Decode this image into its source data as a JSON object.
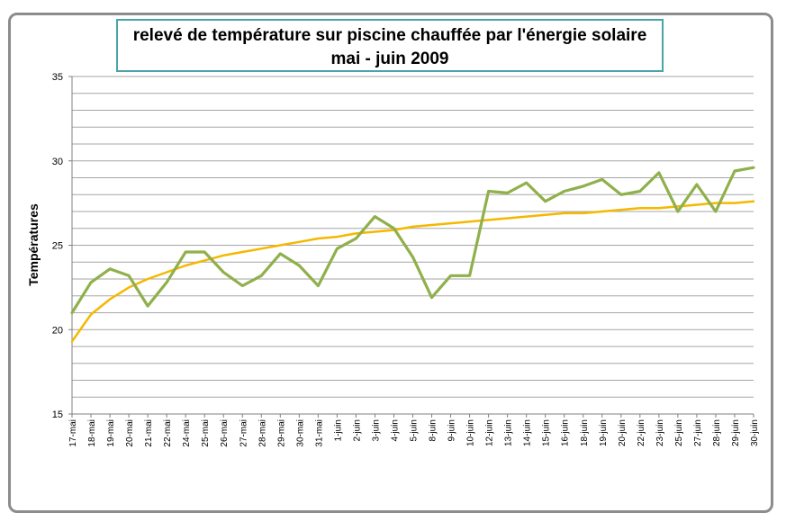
{
  "chart_data": {
    "type": "line",
    "title": "relevé de température sur piscine chauffée par l'énergie solaire",
    "subtitle": "mai - juin 2009",
    "ylabel": "Températures",
    "xlabel": "",
    "ylim": [
      15,
      35
    ],
    "yticks": [
      15,
      20,
      25,
      30,
      35
    ],
    "grid": true,
    "legend": "none",
    "categories": [
      "17-mai",
      "18-mai",
      "19-mai",
      "20-mai",
      "21-mai",
      "22-mai",
      "24-mai",
      "25-mai",
      "26-mai",
      "27-mai",
      "28-mai",
      "29-mai",
      "30-mai",
      "31-mai",
      "1-juin",
      "2-juin",
      "3-juin",
      "4-juin",
      "5-juin",
      "8-juin",
      "9-juin",
      "10-juin",
      "12-juin",
      "13-juin",
      "14-juin",
      "15-juin",
      "16-juin",
      "18-juin",
      "19-juin",
      "20-juin",
      "22-juin",
      "23-juin",
      "25-juin",
      "27-juin",
      "28-juin",
      "29-juin",
      "30-juin"
    ],
    "series": [
      {
        "color": "#8fb04a",
        "values": [
          21.0,
          22.8,
          23.6,
          23.2,
          21.4,
          22.8,
          24.6,
          24.6,
          23.4,
          22.6,
          23.2,
          24.5,
          23.8,
          22.6,
          24.8,
          25.4,
          26.7,
          26.0,
          24.3,
          21.9,
          23.2,
          23.2,
          28.2,
          28.1,
          28.7,
          27.6,
          28.2,
          28.5,
          28.9,
          28.0,
          28.2,
          29.3,
          27.0,
          28.6,
          27.0,
          29.4,
          29.6
        ]
      }
    ],
    "trendline": {
      "type": "logarithmic",
      "color": "#f5b800",
      "values": [
        19.3,
        20.9,
        21.8,
        22.5,
        23.0,
        23.4,
        23.8,
        24.1,
        24.4,
        24.6,
        24.8,
        25.0,
        25.2,
        25.4,
        25.5,
        25.7,
        25.8,
        25.9,
        26.1,
        26.2,
        26.3,
        26.4,
        26.5,
        26.6,
        26.7,
        26.8,
        26.9,
        26.9,
        27.0,
        27.1,
        27.2,
        27.2,
        27.3,
        27.4,
        27.5,
        27.5,
        27.6
      ]
    }
  }
}
